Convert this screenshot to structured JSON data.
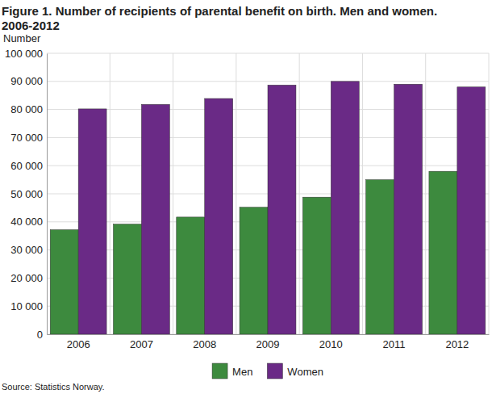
{
  "chart_data": {
    "type": "bar",
    "title": "Figure 1.  Number of recipients of parental benefit on birth. Men and women. 2006-2012",
    "y_label": "Number",
    "source": "Source: Statistics Norway.",
    "categories": [
      "2006",
      "2007",
      "2008",
      "2009",
      "2010",
      "2011",
      "2012"
    ],
    "series": [
      {
        "name": "Men",
        "color": "#3d8a3e",
        "values": [
          37200,
          39200,
          41700,
          45200,
          48800,
          55000,
          58000
        ]
      },
      {
        "name": "Women",
        "color": "#6a2a86",
        "values": [
          80200,
          81800,
          83900,
          88700,
          90000,
          89000,
          88000
        ]
      }
    ],
    "ylim": [
      0,
      100000
    ],
    "yticks": [
      0,
      {
        "value": 10000,
        "label": "10 000"
      },
      {
        "value": 20000,
        "label": "20 000"
      },
      {
        "value": 30000,
        "label": "30 000"
      },
      {
        "value": 40000,
        "label": "40 000"
      },
      {
        "value": 50000,
        "label": "50 000"
      },
      {
        "value": 60000,
        "label": "60 000"
      },
      {
        "value": 70000,
        "label": "70 000"
      },
      {
        "value": 80000,
        "label": "80 000"
      },
      {
        "value": 90000,
        "label": "90 000"
      },
      {
        "value": 100000,
        "label": "100 000"
      }
    ],
    "grid": true,
    "legend": "bottom"
  }
}
